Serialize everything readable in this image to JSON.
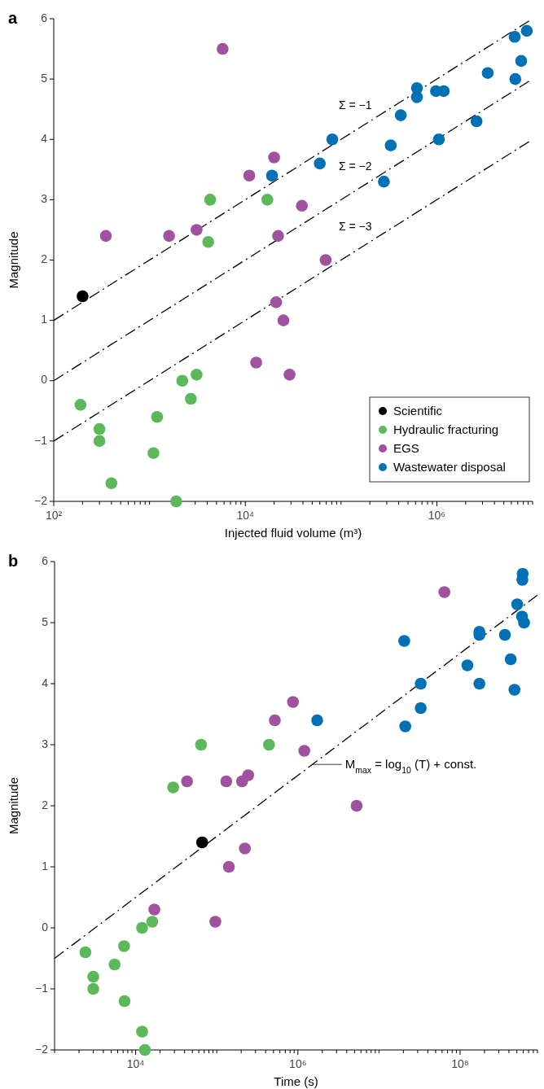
{
  "chart_data": [
    {
      "type": "scatter",
      "title": "a",
      "xlabel": "Injected fluid volume (m³)",
      "ylabel": "Magnitude",
      "log": "x",
      "marker": "circle",
      "legend": "bottom right",
      "grid": false,
      "xlim": [
        100,
        10000000
      ],
      "ylim": [
        -2,
        6
      ],
      "yticks": [
        -2,
        -1,
        0,
        1,
        2,
        3,
        4,
        5,
        6
      ],
      "xticks": [
        {
          "value": 100,
          "label": "10²"
        },
        {
          "value": 200,
          "label": null
        },
        {
          "value": 300,
          "label": null
        },
        {
          "value": 400,
          "label": null
        },
        {
          "value": 500,
          "label": null
        },
        {
          "value": 600,
          "label": null
        },
        {
          "value": 700,
          "label": null
        },
        {
          "value": 800,
          "label": null
        },
        {
          "value": 900,
          "label": null
        },
        {
          "value": 1000,
          "label": null
        },
        {
          "value": 2000,
          "label": null
        },
        {
          "value": 3000,
          "label": null
        },
        {
          "value": 4000,
          "label": null
        },
        {
          "value": 5000,
          "label": null
        },
        {
          "value": 6000,
          "label": null
        },
        {
          "value": 7000,
          "label": null
        },
        {
          "value": 8000,
          "label": null
        },
        {
          "value": 9000,
          "label": null
        },
        {
          "value": 10000,
          "label": "10⁴"
        },
        {
          "value": 20000,
          "label": null
        },
        {
          "value": 30000,
          "label": null
        },
        {
          "value": 40000,
          "label": null
        },
        {
          "value": 50000,
          "label": null
        },
        {
          "value": 60000,
          "label": null
        },
        {
          "value": 70000,
          "label": null
        },
        {
          "value": 80000,
          "label": null
        },
        {
          "value": 90000,
          "label": null
        },
        {
          "value": 100000,
          "label": null
        },
        {
          "value": 200000,
          "label": null
        },
        {
          "value": 300000,
          "label": null
        },
        {
          "value": 400000,
          "label": null
        },
        {
          "value": 500000,
          "label": null
        },
        {
          "value": 600000,
          "label": null
        },
        {
          "value": 700000,
          "label": null
        },
        {
          "value": 800000,
          "label": null
        },
        {
          "value": 900000,
          "label": null
        },
        {
          "value": 1000000,
          "label": "10⁶"
        },
        {
          "value": 2000000,
          "label": null
        },
        {
          "value": 3000000,
          "label": null
        },
        {
          "value": 4000000,
          "label": null
        },
        {
          "value": 5000000,
          "label": null
        },
        {
          "value": 6000000,
          "label": null
        },
        {
          "value": 7000000,
          "label": null
        },
        {
          "value": 8000000,
          "label": null
        },
        {
          "value": 9000000,
          "label": null
        },
        {
          "value": 10000000,
          "label": null
        }
      ],
      "series": [
        {
          "type": "line",
          "name": "Σ = −1",
          "marker": "none",
          "color": "#000000",
          "line_style": "dashed",
          "x": [
            100,
            10000000
          ],
          "values": [
            1,
            6
          ]
        },
        {
          "type": "line",
          "name": "Σ = −2",
          "marker": "none",
          "color": "#000000",
          "line_style": "dashed",
          "x": [
            100,
            10000000
          ],
          "values": [
            0,
            5
          ]
        },
        {
          "type": "line",
          "name": "Σ = −3",
          "marker": "none",
          "color": "#000000",
          "line_style": "dashed",
          "x": [
            100,
            10000000
          ],
          "values": [
            -1,
            4
          ]
        },
        {
          "name": "Scientific",
          "color": "#000000",
          "x": [
            200
          ],
          "values": [
            1.4
          ]
        },
        {
          "name": "Hydraulic fracturing",
          "color": "#5cb85a",
          "x": [
            4300,
            17000,
            4100,
            190,
            300,
            300,
            400,
            1100,
            1200,
            1900,
            2200,
            3100,
            2700
          ],
          "values": [
            3.0,
            3.0,
            2.3,
            -0.4,
            -0.8,
            -1.0,
            -1.7,
            -1.2,
            -0.6,
            -2.0,
            0.0,
            0.1,
            -0.3
          ]
        },
        {
          "name": "EGS",
          "color": "#a0529e",
          "x": [
            5800,
            350,
            1600,
            3100,
            11000,
            20000,
            13000,
            22000,
            39000,
            69000,
            21000,
            25000,
            29000
          ],
          "values": [
            5.5,
            2.4,
            2.4,
            2.5,
            3.4,
            3.7,
            0.3,
            2.4,
            2.9,
            2.0,
            1.3,
            1.0,
            0.1
          ]
        },
        {
          "name": "Wastewater disposal",
          "color": "#0071b4",
          "x": [
            19000,
            60000,
            81000,
            280000,
            330000,
            420000,
            620000,
            620000,
            980000,
            1180000,
            1050000,
            2600000,
            3400000,
            6500000,
            8700000,
            7600000,
            6600000
          ],
          "values": [
            3.4,
            3.6,
            4.0,
            3.3,
            3.9,
            4.4,
            4.85,
            4.7,
            4.8,
            4.8,
            4.0,
            4.3,
            5.1,
            5.7,
            5.8,
            5.3,
            5.0
          ]
        }
      ]
    },
    {
      "type": "scatter",
      "title": "b",
      "xlabel": "Time (s)",
      "ylabel": "Magnitude",
      "log": "x",
      "marker": "circle",
      "grid": false,
      "xlim": [
        1000,
        900000000
      ],
      "ylim": [
        -2,
        6
      ],
      "yticks": [
        -2,
        -1,
        0,
        1,
        2,
        3,
        4,
        5,
        6
      ],
      "xticks": [
        {
          "value": 1000,
          "label": null
        },
        {
          "value": 2000,
          "label": null
        },
        {
          "value": 3000,
          "label": null
        },
        {
          "value": 4000,
          "label": null
        },
        {
          "value": 5000,
          "label": null
        },
        {
          "value": 6000,
          "label": null
        },
        {
          "value": 7000,
          "label": null
        },
        {
          "value": 8000,
          "label": null
        },
        {
          "value": 9000,
          "label": null
        },
        {
          "value": 10000,
          "label": "10⁴"
        },
        {
          "value": 20000,
          "label": null
        },
        {
          "value": 30000,
          "label": null
        },
        {
          "value": 40000,
          "label": null
        },
        {
          "value": 50000,
          "label": null
        },
        {
          "value": 60000,
          "label": null
        },
        {
          "value": 70000,
          "label": null
        },
        {
          "value": 80000,
          "label": null
        },
        {
          "value": 90000,
          "label": null
        },
        {
          "value": 100000,
          "label": null
        },
        {
          "value": 200000,
          "label": null
        },
        {
          "value": 300000,
          "label": null
        },
        {
          "value": 400000,
          "label": null
        },
        {
          "value": 500000,
          "label": null
        },
        {
          "value": 600000,
          "label": null
        },
        {
          "value": 700000,
          "label": null
        },
        {
          "value": 800000,
          "label": null
        },
        {
          "value": 900000,
          "label": null
        },
        {
          "value": 1000000,
          "label": "10⁶"
        },
        {
          "value": 2000000,
          "label": null
        },
        {
          "value": 3000000,
          "label": null
        },
        {
          "value": 4000000,
          "label": null
        },
        {
          "value": 5000000,
          "label": null
        },
        {
          "value": 6000000,
          "label": null
        },
        {
          "value": 7000000,
          "label": null
        },
        {
          "value": 8000000,
          "label": null
        },
        {
          "value": 9000000,
          "label": null
        },
        {
          "value": 10000000,
          "label": null
        },
        {
          "value": 20000000,
          "label": null
        },
        {
          "value": 30000000,
          "label": null
        },
        {
          "value": 40000000,
          "label": null
        },
        {
          "value": 50000000,
          "label": null
        },
        {
          "value": 60000000,
          "label": null
        },
        {
          "value": 70000000,
          "label": null
        },
        {
          "value": 80000000,
          "label": null
        },
        {
          "value": 90000000,
          "label": null
        },
        {
          "value": 100000000,
          "label": "10⁸"
        },
        {
          "value": 200000000,
          "label": null
        },
        {
          "value": 300000000,
          "label": null
        },
        {
          "value": 400000000,
          "label": null
        },
        {
          "value": 500000000,
          "label": null
        },
        {
          "value": 600000000,
          "label": null
        },
        {
          "value": 700000000,
          "label": null
        },
        {
          "value": 800000000,
          "label": null
        },
        {
          "value": 900000000,
          "label": null
        }
      ],
      "annotations": [
        "M$_{max}$ = log$_{10}$ (T) + const."
      ],
      "series": [
        {
          "type": "line",
          "marker": "none",
          "color": "#000000",
          "line_style": "dashed",
          "x": [
            1000,
            900000000
          ],
          "values": [
            -0.5,
            5.45
          ]
        },
        {
          "color": "#000000",
          "x": [
            66000
          ],
          "values": [
            1.4
          ]
        },
        {
          "color": "#5cb85a",
          "x": [
            2400,
            3000,
            3000,
            5500,
            7200,
            7300,
            12000,
            16000,
            12000,
            13000,
            29000,
            64000,
            440000
          ],
          "values": [
            -0.4,
            -0.8,
            -1.0,
            -0.6,
            -0.3,
            -1.2,
            0.0,
            0.1,
            -1.7,
            -2.0,
            2.3,
            3.0,
            3.0
          ]
        },
        {
          "color": "#a0529e",
          "x": [
            17000,
            43000,
            131000,
            205000,
            244000,
            222000,
            141000,
            96000,
            520000,
            870000,
            1200000,
            5300000,
            64000000
          ],
          "values": [
            0.3,
            2.4,
            2.4,
            2.4,
            2.5,
            1.3,
            1.0,
            0.1,
            3.4,
            3.7,
            2.9,
            2.0,
            5.5
          ]
        },
        {
          "color": "#0071b4",
          "x": [
            1730000,
            20500000,
            21100000,
            32700000,
            32700000,
            173000000,
            173000000,
            123000000,
            173000000,
            357000000,
            421000000,
            468000000,
            506000000,
            591000000,
            586000000,
            580000000,
            615000000
          ],
          "values": [
            3.4,
            4.7,
            3.3,
            4.0,
            3.6,
            4.85,
            4.8,
            4.3,
            4.0,
            4.8,
            4.4,
            3.9,
            5.3,
            5.8,
            5.7,
            5.1,
            5.0
          ]
        }
      ]
    }
  ]
}
